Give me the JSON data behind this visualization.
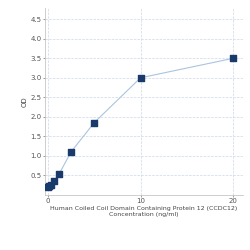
{
  "x": [
    0,
    0.156,
    0.313,
    0.625,
    1.25,
    2.5,
    5,
    10,
    20
  ],
  "y": [
    0.2,
    0.22,
    0.26,
    0.35,
    0.55,
    1.1,
    1.85,
    3.0,
    3.5
  ],
  "xlabel_line1": "Human Coiled Coil Domain Containing Protein 12 (CCDC12)",
  "xlabel_line2": "Concentration (ng/ml)",
  "ylabel": "OD",
  "xlim": [
    -0.3,
    21
  ],
  "ylim": [
    0.0,
    4.8
  ],
  "yticks": [
    0.5,
    1.0,
    1.5,
    2.0,
    2.5,
    3.0,
    3.5,
    4.0,
    4.5
  ],
  "xticks": [
    0,
    10,
    20
  ],
  "line_color": "#aac4de",
  "marker_color": "#1a3a6b",
  "marker_size": 14,
  "grid_color": "#cdd8e8",
  "bg_color": "#ffffff",
  "label_fontsize": 4.5,
  "tick_fontsize": 5,
  "ylabel_fontsize": 5
}
